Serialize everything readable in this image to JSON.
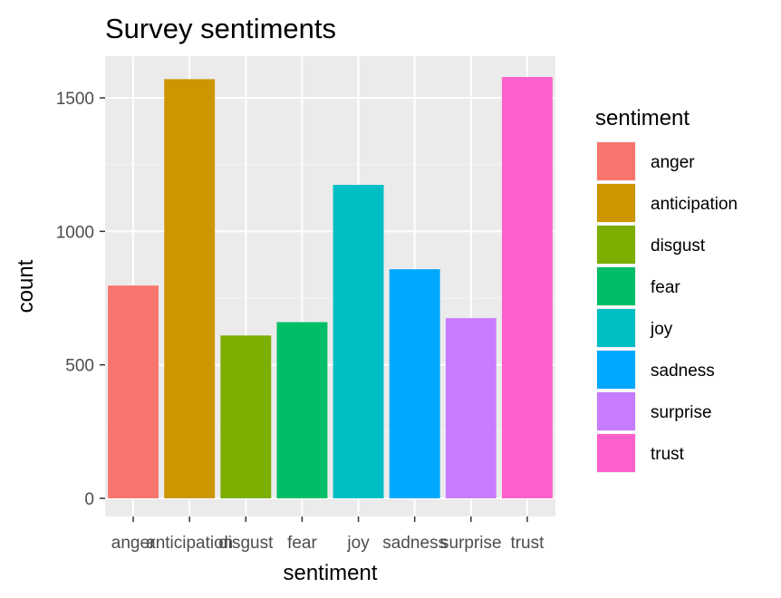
{
  "chart_data": {
    "type": "bar",
    "title": "Survey sentiments",
    "xlabel": "sentiment",
    "ylabel": "count",
    "categories": [
      "anger",
      "anticipation",
      "disgust",
      "fear",
      "joy",
      "sadness",
      "surprise",
      "trust"
    ],
    "values": [
      797,
      1570,
      610,
      660,
      1174,
      858,
      675,
      1578
    ],
    "colors": [
      "#F8766D",
      "#CD9600",
      "#7CAE00",
      "#00BE67",
      "#00BFC4",
      "#00A9FF",
      "#C77CFF",
      "#FF61CC"
    ],
    "ylim": [
      0,
      1640
    ],
    "yticks": [
      0,
      500,
      1000,
      1500
    ],
    "grid": true,
    "legend": {
      "title": "sentiment",
      "placement": "right",
      "items": [
        "anger",
        "anticipation",
        "disgust",
        "fear",
        "joy",
        "sadness",
        "surprise",
        "trust"
      ]
    }
  }
}
